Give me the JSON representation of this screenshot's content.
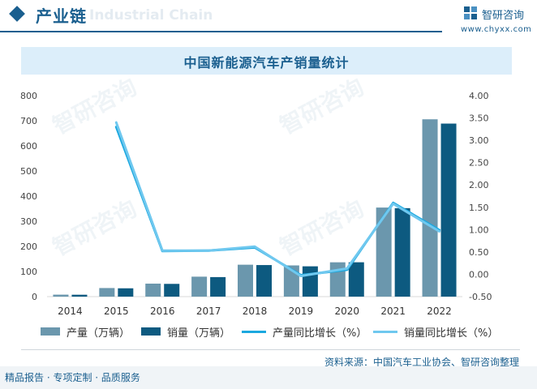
{
  "header": {
    "title": "产业链",
    "ghost_text": "Industrial Chain",
    "logo_name": "智研咨询",
    "logo_url": "www.chyxx.com"
  },
  "chart_data": {
    "type": "bar",
    "title": "中国新能源汽车产销量统计",
    "categories": [
      "2014",
      "2015",
      "2016",
      "2017",
      "2018",
      "2019",
      "2020",
      "2021",
      "2022"
    ],
    "series": [
      {
        "name": "产量（万辆）",
        "kind": "bar",
        "axis": "left",
        "color": "#6b97ad",
        "values": [
          7.8,
          34.1,
          51.7,
          79.4,
          127,
          124.2,
          136.6,
          354.5,
          705.8
        ]
      },
      {
        "name": "销量（万辆）",
        "kind": "bar",
        "axis": "left",
        "color": "#0d5a80",
        "values": [
          7.5,
          33.1,
          50.7,
          77.7,
          125.6,
          120.6,
          136.7,
          352.1,
          688.7
        ]
      },
      {
        "name": "产量同比增长（%）",
        "kind": "line",
        "axis": "right",
        "color": "#1ba8df",
        "values": [
          null,
          3.3,
          0.52,
          0.53,
          0.6,
          -0.02,
          0.1,
          1.6,
          0.99
        ]
      },
      {
        "name": "销量同比增长（%）",
        "kind": "line",
        "axis": "right",
        "color": "#6fc8ef",
        "values": [
          null,
          3.4,
          0.53,
          0.53,
          0.62,
          -0.04,
          0.13,
          1.58,
          0.96
        ]
      }
    ],
    "y_left": {
      "min": 0,
      "max": 800,
      "step": 100,
      "ticks": [
        "0",
        "100",
        "200",
        "300",
        "400",
        "500",
        "600",
        "700",
        "800"
      ]
    },
    "y_right": {
      "min": -0.5,
      "max": 4.0,
      "step": 0.5,
      "ticks": [
        "-0.50",
        "0.00",
        "0.50",
        "1.00",
        "1.50",
        "2.00",
        "2.50",
        "3.00",
        "3.50",
        "4.00"
      ]
    },
    "legend_position": "bottom",
    "grid": false
  },
  "source": "资料来源：中国汽车工业协会、智研咨询整理",
  "footer_tagline": "精品报告 · 专项定制 · 品质服务",
  "watermark": "智研咨询"
}
